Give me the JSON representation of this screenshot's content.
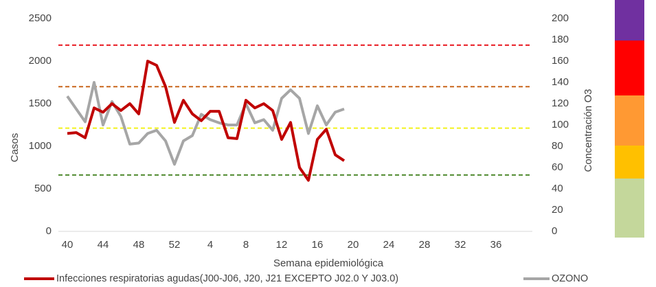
{
  "chart_data": {
    "type": "line",
    "x_label": "Semana epidemiológica",
    "y_label": "Casos",
    "y2_label": "Concentración O3",
    "categories": [
      40,
      null,
      null,
      null,
      44,
      null,
      null,
      null,
      48,
      null,
      null,
      null,
      52,
      null,
      null,
      null,
      4,
      null,
      null,
      null,
      8,
      null,
      null,
      null,
      12,
      null,
      null,
      null,
      16,
      null,
      null,
      null,
      20,
      null,
      null,
      null,
      24,
      null,
      null,
      null,
      28,
      null,
      null,
      null,
      32,
      null,
      null,
      null,
      36,
      null,
      null,
      null
    ],
    "ylim": [
      0,
      2500
    ],
    "yticks": [
      0,
      500,
      1000,
      1500,
      2000,
      2500
    ],
    "y2lim": [
      0,
      200
    ],
    "y2ticks": [
      0,
      20,
      40,
      60,
      80,
      100,
      120,
      140,
      160,
      180,
      200
    ],
    "reference_lines": [
      {
        "value": 175,
        "color": "#e8141c",
        "axis": "y2"
      },
      {
        "value": 136,
        "color": "#c8651b",
        "axis": "y2"
      },
      {
        "value": 97,
        "color": "#f2f21a",
        "axis": "y2"
      },
      {
        "value": 53,
        "color": "#4f8a2e",
        "axis": "y2"
      }
    ],
    "series": [
      {
        "name": "Infecciones respiratorias agudas(J00-J06, J20, J21 EXCEPTO J02.0 Y J03.0)",
        "color": "#c00000",
        "values": [
          1150,
          1160,
          1100,
          1450,
          1400,
          1500,
          1420,
          1500,
          1380,
          2000,
          1950,
          1700,
          1280,
          1540,
          1380,
          1300,
          1410,
          1410,
          1100,
          1090,
          1540,
          1450,
          1500,
          1420,
          1080,
          1280,
          750,
          600,
          1080,
          1200,
          900,
          830,
          null,
          null,
          null,
          null,
          null,
          null,
          null,
          null,
          null,
          null,
          null,
          null,
          null,
          null,
          null,
          null,
          null,
          null,
          null,
          null
        ]
      },
      {
        "name": "OZONO",
        "color": "#a6a6a6",
        "axis": "y2",
        "values": [
          127,
          115,
          103,
          140,
          100,
          122,
          108,
          82,
          83,
          92,
          95,
          85,
          63,
          85,
          90,
          110,
          105,
          102,
          100,
          100,
          120,
          102,
          105,
          95,
          125,
          133,
          125,
          92,
          118,
          100,
          112,
          115,
          null,
          null,
          null,
          null,
          null,
          null,
          null,
          null,
          null,
          null,
          null,
          null,
          null,
          null,
          null,
          null,
          null,
          null,
          null,
          null
        ]
      }
    ]
  }
}
